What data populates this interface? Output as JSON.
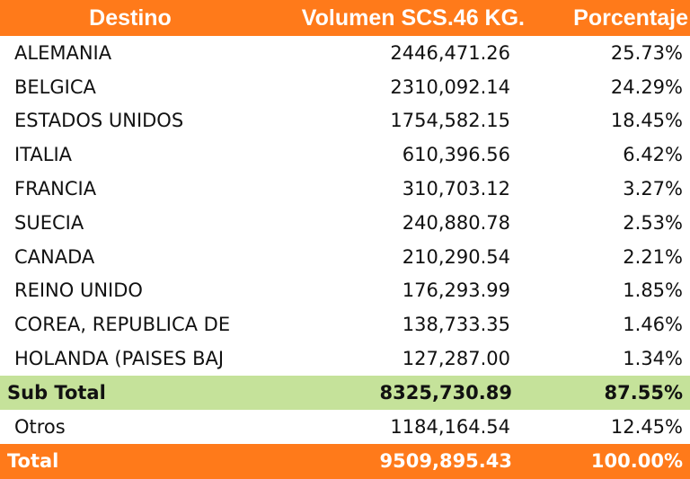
{
  "chart_data": {
    "type": "table",
    "columns": [
      "Destino",
      "Volumen SCS.46 KG.",
      "Porcentaje"
    ],
    "rows": [
      {
        "destino": "ALEMANIA",
        "volumen": "2446,471.26",
        "porcentaje": "25.73%"
      },
      {
        "destino": "BELGICA",
        "volumen": "2310,092.14",
        "porcentaje": "24.29%"
      },
      {
        "destino": "ESTADOS UNIDOS",
        "volumen": "1754,582.15",
        "porcentaje": "18.45%"
      },
      {
        "destino": "ITALIA",
        "volumen": "610,396.56",
        "porcentaje": "6.42%"
      },
      {
        "destino": "FRANCIA",
        "volumen": "310,703.12",
        "porcentaje": "3.27%"
      },
      {
        "destino": "SUECIA",
        "volumen": "240,880.78",
        "porcentaje": "2.53%"
      },
      {
        "destino": "CANADA",
        "volumen": "210,290.54",
        "porcentaje": "2.21%"
      },
      {
        "destino": "REINO UNIDO",
        "volumen": "176,293.99",
        "porcentaje": "1.85%"
      },
      {
        "destino": "COREA, REPUBLICA DE",
        "volumen": "138,733.35",
        "porcentaje": "1.46%"
      },
      {
        "destino": "HOLANDA (PAISES BAJ",
        "volumen": "127,287.00",
        "porcentaje": "1.34%"
      }
    ],
    "subtotal": {
      "destino": "Sub Total",
      "volumen": "8325,730.89",
      "porcentaje": "87.55%"
    },
    "otros": {
      "destino": "Otros",
      "volumen": "1184,164.54",
      "porcentaje": "12.45%"
    },
    "total": {
      "destino": "Total",
      "volumen": "9509,895.43",
      "porcentaje": "100.00%"
    }
  },
  "colors": {
    "header_bg": "#FF7A1A",
    "subtotal_bg": "#C5E29A",
    "total_bg": "#FF7A1A"
  }
}
